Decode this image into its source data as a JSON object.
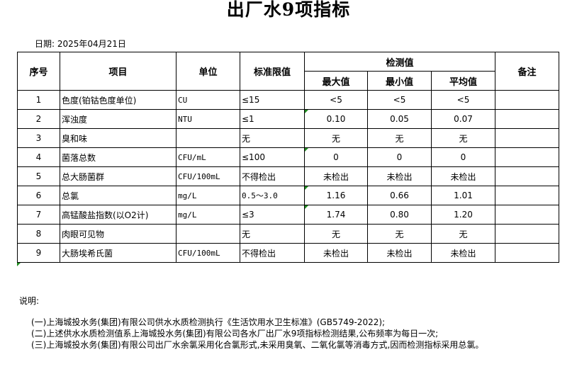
{
  "title": "出厂水9项指标",
  "date": "日期: 2025年04月21日",
  "headers": {
    "seq": "序号",
    "item": "项目",
    "unit": "单位",
    "limit": "标准限值",
    "detect": "检测值",
    "max": "最大值",
    "min": "最小值",
    "avg": "平均值",
    "remark": "备注"
  },
  "rows": [
    {
      "seq": "1",
      "item": "色度(铂钴色度单位)",
      "unit": "CU",
      "limit": "≤15",
      "max": "<5",
      "min": "<5",
      "avg": "<5",
      "remark": ""
    },
    {
      "seq": "2",
      "item": "浑浊度",
      "unit": "NTU",
      "limit": "≤1",
      "max": "0.10",
      "min": "0.05",
      "avg": "0.07",
      "remark": ""
    },
    {
      "seq": "3",
      "item": "臭和味",
      "unit": "",
      "limit": "无",
      "max": "无",
      "min": "无",
      "avg": "无",
      "remark": ""
    },
    {
      "seq": "4",
      "item": "菌落总数",
      "unit": "CFU/mL",
      "limit": "≤100",
      "max": "0",
      "min": "0",
      "avg": "0",
      "remark": ""
    },
    {
      "seq": "5",
      "item": "总大肠菌群",
      "unit": "CFU/100mL",
      "limit": "不得检出",
      "max": "未检出",
      "min": "未检出",
      "avg": "未检出",
      "remark": ""
    },
    {
      "seq": "6",
      "item": "总氯",
      "unit": "mg/L",
      "limit": "0.5～3.0",
      "max": "1.16",
      "min": "0.66",
      "avg": "1.01",
      "remark": ""
    },
    {
      "seq": "7",
      "item": "高锰酸盐指数(以O2计)",
      "unit": "mg/L",
      "limit": "≤3",
      "max": "1.74",
      "min": "0.80",
      "avg": "1.20",
      "remark": ""
    },
    {
      "seq": "8",
      "item": "肉眼可见物",
      "unit": "",
      "limit": "无",
      "max": "无",
      "min": "无",
      "avg": "无",
      "remark": ""
    },
    {
      "seq": "9",
      "item": "大肠埃希氏菌",
      "unit": "CFU/100mL",
      "limit": "不得检出",
      "max": "未检出",
      "min": "未检出",
      "avg": "未检出",
      "remark": ""
    }
  ],
  "notes_label": "说明:",
  "notes": [
    "(一)上海城投水务(集团)有限公司供水水质检测执行《生活饮用水卫生标准》(GB5749-2022);",
    "(二)上述供水水质检测值系上海城投水务(集团)有限公司各水厂出厂水9项指标检测结果,公布频率为每日一次;",
    "(三)上海城投水务(集团)有限公司出厂水余氯采用化合氯形式,未采用臭氧、二氧化氯等消毒方式,因而检测指标采用总氯。"
  ],
  "colors": {
    "cell_marker": "#1e8c1e"
  }
}
